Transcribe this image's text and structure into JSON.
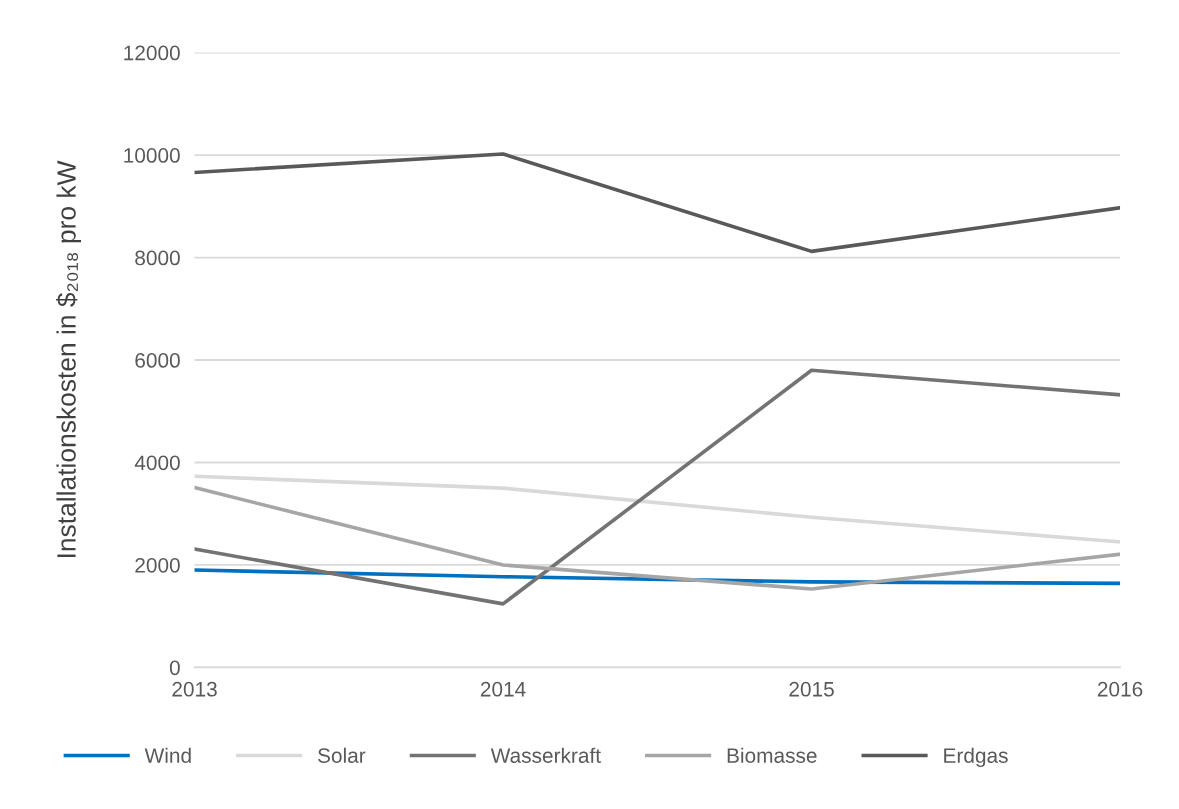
{
  "chart_data": {
    "type": "line",
    "ylabel": "Installationskosten in $₂₀₁₈ pro kW",
    "x": [
      2013,
      2014,
      2015,
      2016
    ],
    "xlim": [
      2013,
      2016
    ],
    "xticks": [
      2013,
      2014,
      2015,
      2016
    ],
    "ylim": [
      0,
      12000
    ],
    "yticks": [
      0,
      2000,
      4000,
      6000,
      8000,
      10000,
      12000
    ],
    "grid": "y",
    "legend": "bottom",
    "series": [
      {
        "name": "Wind",
        "color": "#0070c0",
        "values": [
          1900,
          1770,
          1670,
          1640
        ]
      },
      {
        "name": "Solar",
        "color": "#d9d9d9",
        "values": [
          3730,
          3500,
          2930,
          2450
        ]
      },
      {
        "name": "Wasserkraft",
        "color": "#737373",
        "values": [
          2310,
          1240,
          5800,
          5320
        ]
      },
      {
        "name": "Biomasse",
        "color": "#a6a6a6",
        "values": [
          3510,
          2000,
          1530,
          2210
        ]
      },
      {
        "name": "Erdgas",
        "color": "#595959",
        "values": [
          9660,
          10020,
          8120,
          8970
        ]
      }
    ]
  }
}
